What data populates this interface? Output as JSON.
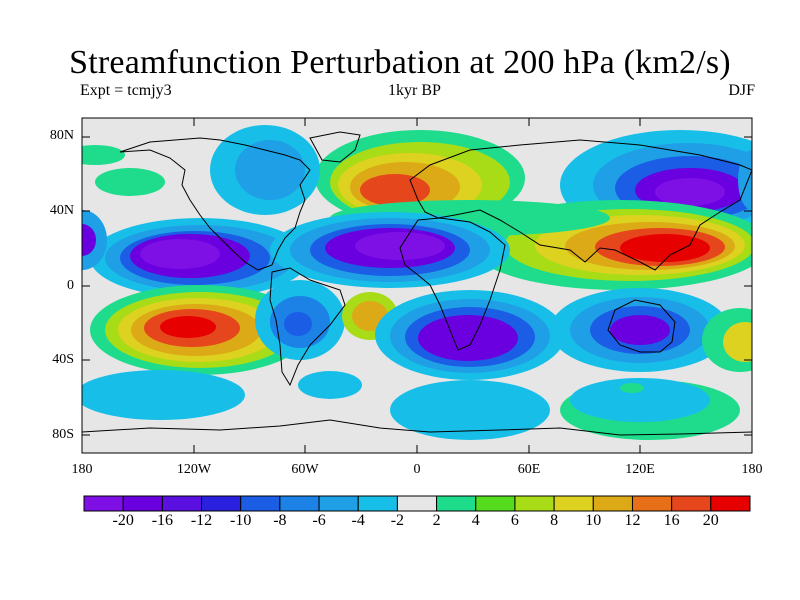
{
  "title": "Streamfunction Perturbation at 200 hPa (km2/s)",
  "subtitle_left": "Expt = tcmjy3",
  "subtitle_center": "1kyr BP",
  "subtitle_right": "DJF",
  "colors": {
    "background": "#e6e6e6",
    "levels": [
      "#7e10e6",
      "#6a00e0",
      "#5a10e0",
      "#2a20e0",
      "#1c5de6",
      "#1c82e6",
      "#1fa0e6",
      "#17bfe8",
      "#e6e6e6",
      "#1fdc8c",
      "#55dc1f",
      "#a8dc17",
      "#dcd21f",
      "#dcaa17",
      "#e66f17",
      "#e6461c",
      "#e60000"
    ]
  },
  "colorbar": {
    "labels": [
      "-20",
      "-16",
      "-12",
      "-10",
      "-8",
      "-6",
      "-4",
      "-2",
      "2",
      "4",
      "6",
      "8",
      "10",
      "12",
      "16",
      "20"
    ]
  },
  "axes": {
    "lat_labels": [
      "80N",
      "40N",
      "0",
      "40S",
      "80S"
    ],
    "lon_labels": [
      "180",
      "120W",
      "60W",
      "0",
      "60E",
      "120E",
      "180"
    ]
  },
  "map_data": {
    "projection": "cylindrical equidistant",
    "lon_range": [
      -180,
      180
    ],
    "lat_range": [
      -90,
      90
    ],
    "features": [
      {
        "lon": 10,
        "lat": 55,
        "level": "10"
      },
      {
        "lon": 135,
        "lat": 50,
        "level": "-16"
      },
      {
        "lon": -120,
        "lat": 22,
        "level": "-16"
      },
      {
        "lon": -10,
        "lat": 20,
        "level": "-16"
      },
      {
        "lon": 130,
        "lat": 20,
        "level": "16"
      },
      {
        "lon": -180,
        "lat": 20,
        "level": "-12"
      },
      {
        "lon": -120,
        "lat": -22,
        "level": "16"
      },
      {
        "lon": -70,
        "lat": -20,
        "level": "-8"
      },
      {
        "lon": -25,
        "lat": -17,
        "level": "12"
      },
      {
        "lon": 20,
        "lat": -25,
        "level": "-16"
      },
      {
        "lon": 115,
        "lat": -25,
        "level": "-12"
      },
      {
        "lon": 175,
        "lat": -30,
        "level": "10"
      },
      {
        "lon": -155,
        "lat": 60,
        "level": "4"
      },
      {
        "lon": -85,
        "lat": 62,
        "level": "-6"
      },
      {
        "lon": 20,
        "lat": -70,
        "level": "-4"
      },
      {
        "lon": 120,
        "lat": -55,
        "level": "6"
      }
    ]
  }
}
